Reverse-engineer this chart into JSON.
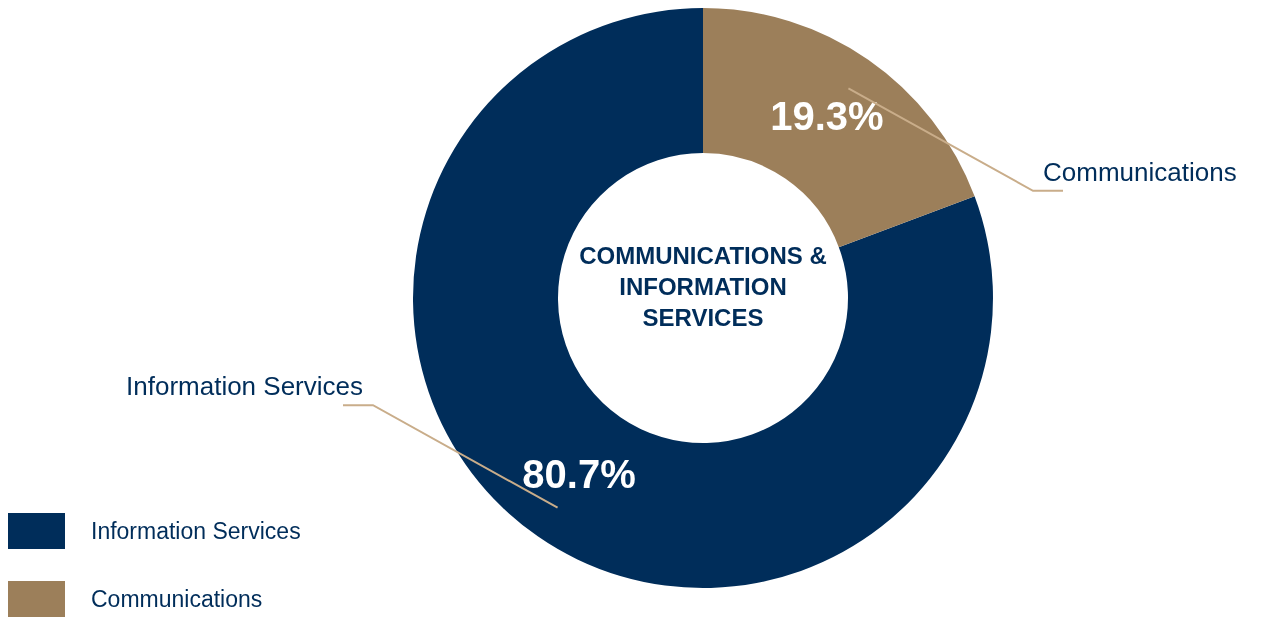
{
  "chart_data": {
    "type": "donut",
    "title": "COMMUNICATIONS & INFORMATION SERVICES",
    "categories": [
      "Information Services",
      "Communications"
    ],
    "values": [
      80.7,
      19.3
    ],
    "value_labels": [
      "80.7%",
      "19.3%"
    ],
    "colors": [
      "#002d5a",
      "#9c7f5a"
    ],
    "legend": "bottom left"
  }
}
